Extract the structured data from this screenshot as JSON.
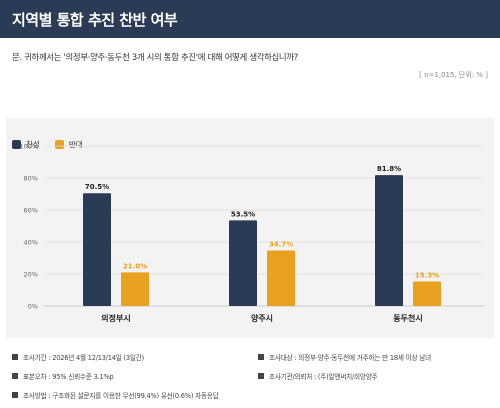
{
  "header": {
    "title": "지역별 통합 추진 찬반 여부"
  },
  "question": "문. 귀하께서는 '의정부·양주·동두천 3개 시의 통합 추진'에 대해 어떻게 생각하십니까?",
  "sample_note": "[ n=1,015, 단위: % ]",
  "colors": {
    "header": "#2b3a55",
    "favor": "#2b3a55",
    "oppose": "#e8a220"
  },
  "chart_data": {
    "type": "bar",
    "categories": [
      "의정부시",
      "양주시",
      "동두천시"
    ],
    "series": [
      {
        "name": "찬성",
        "values": [
          70.5,
          53.5,
          81.8
        ],
        "labels": [
          "70.5%",
          "53.5%",
          "81.8%"
        ]
      },
      {
        "name": "반대",
        "values": [
          21.0,
          34.7,
          15.3
        ],
        "labels": [
          "21.0%",
          "34.7%",
          "15.3%"
        ]
      }
    ],
    "ylim": [
      0,
      100
    ],
    "yticks": [
      "0%",
      "20%",
      "40%",
      "60%",
      "80%",
      "100%"
    ],
    "ytick_values": [
      0,
      20,
      40,
      60,
      80,
      100
    ],
    "grid": true,
    "legend": "top-left"
  },
  "footer": {
    "period": "조사기간 : 2026년 4월 12/13/14일 (3일간)",
    "target": "조사대상 : 의정부·양주·동두천에 거주하는 만 18세 이상 남녀",
    "error": "표본오차 : 95% 신뢰수준 3.1%p",
    "agency": "조사기관/의뢰처 : (주)알앤써치/희망양주",
    "method": "조사방법 : 구조화된 설문지를 이용한 무선(99.4%) 유선(0.6%) 자동응답"
  }
}
